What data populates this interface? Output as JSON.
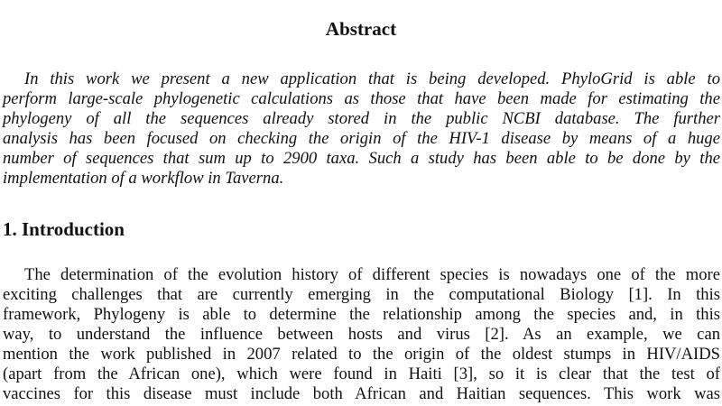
{
  "abstract": {
    "title": "Abstract",
    "lines": [
      "In this work we present a new application that is being developed. PhyloGrid is able to",
      "perform large-scale phylogenetic calculations as those that have been made for estimating the",
      "phylogeny of all the sequences already stored in the public NCBI database. The further",
      "analysis has been focused on checking the origin of the HIV-1 disease by means of a huge",
      "number of sequences that sum up to 2900 taxa. Such a study has been able to be done by the",
      "implementation of a workflow in Taverna."
    ]
  },
  "introduction": {
    "heading": "1. Introduction",
    "lines": [
      "The determination of the evolution history of different species is nowadays one of the more",
      "exciting challenges that are currently emerging in the computational Biology [1]. In this",
      "framework, Phylogeny is able to determine the relationship among the species and, in this",
      "way, to understand the influence between hosts and virus [2].  As an example, we can",
      "mention the work published in 2007 related to the origin of the oldest stumps in HIV/AIDS",
      "(apart from the African one), which were found in Haiti [3], so it is clear that the test of",
      "vaccines for this disease must include both African and Haitian sequences. This work was"
    ]
  }
}
